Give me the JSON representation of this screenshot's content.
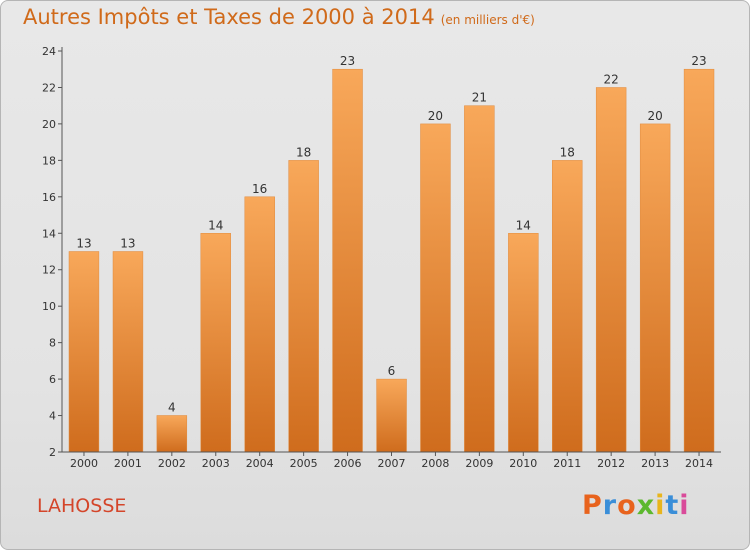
{
  "header": {
    "title": "Autres Impôts et Taxes de 2000 à 2014",
    "subtitle": "(en milliers d'€)"
  },
  "footer": {
    "commune": "LAHOSSE",
    "brand": "Proxiti",
    "brand_colors": [
      "#e8631d",
      "#3a8ed8",
      "#e8631d",
      "#5cb82e",
      "#e8b51d",
      "#3a8ed8",
      "#d94b9a"
    ]
  },
  "colors": {
    "bar_top": "#f8a85a",
    "bar_bottom": "#cf6c1d",
    "title": "#d06a1a",
    "commune": "#d4452a"
  },
  "chart_data": {
    "type": "bar",
    "title": "Autres Impôts et Taxes de 2000 à 2014",
    "subtitle": "(en milliers d'€)",
    "categories": [
      "2000",
      "2001",
      "2002",
      "2003",
      "2004",
      "2005",
      "2006",
      "2007",
      "2008",
      "2009",
      "2010",
      "2011",
      "2012",
      "2013",
      "2014"
    ],
    "values": [
      13,
      13,
      4,
      14,
      16,
      18,
      23,
      6,
      20,
      21,
      14,
      18,
      22,
      20,
      23
    ],
    "ylim": [
      2,
      24
    ],
    "yticks": [
      2,
      4,
      6,
      8,
      10,
      12,
      14,
      16,
      18,
      20,
      22,
      24
    ],
    "xlabel": "",
    "ylabel": "",
    "grid": false,
    "data_labels": true
  }
}
